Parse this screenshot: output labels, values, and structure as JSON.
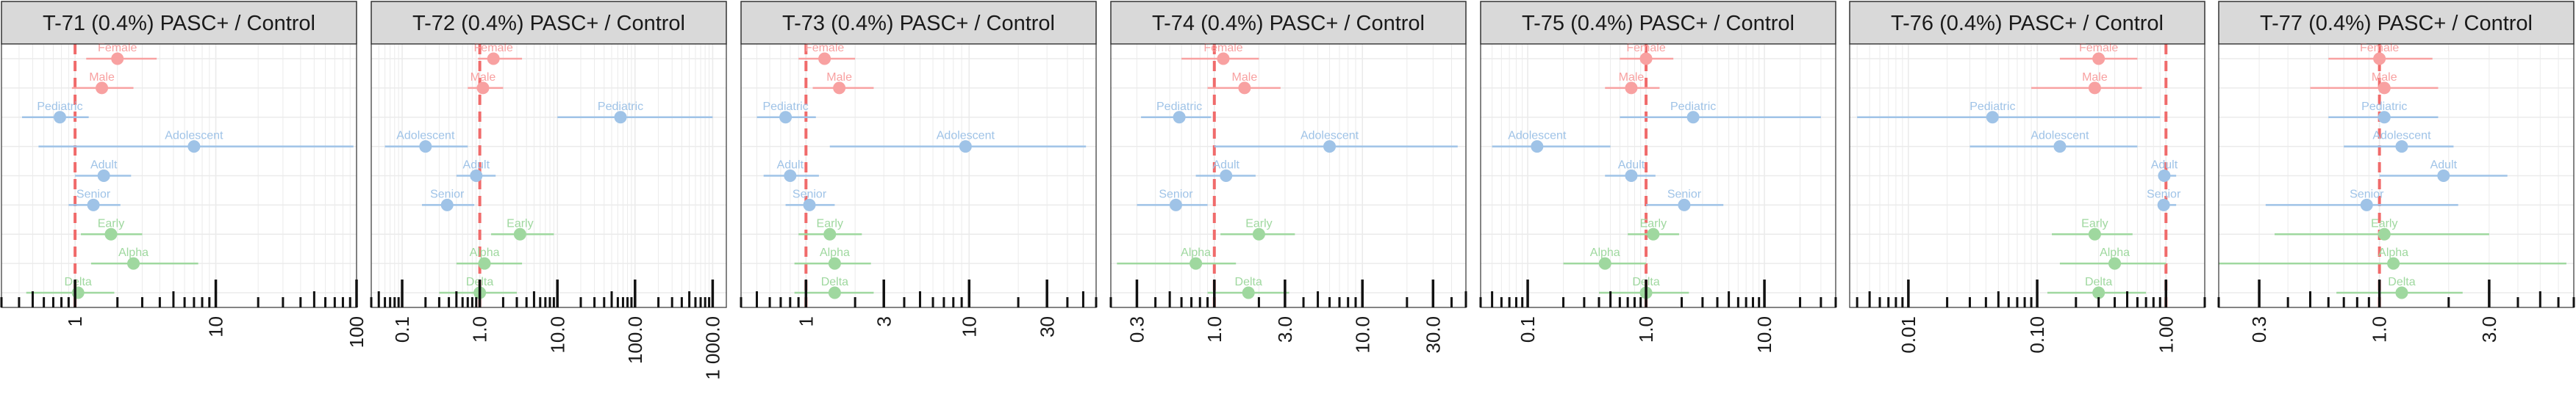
{
  "colors": {
    "sex": "#f8a1a1",
    "age": "#9fc3e7",
    "variant": "#9fd89f",
    "ref_line": "#f06b6b",
    "strip_bg": "#d9d9d9",
    "panel_border": "#333333",
    "grid": "#ebebeb"
  },
  "chart_data": [
    {
      "type": "forest",
      "title": "T-71 (0.4%) PASC+ / Control",
      "scale": "log10",
      "xlim": [
        0.3,
        100
      ],
      "ticks": [
        1,
        10,
        100
      ],
      "tick_labels": [
        "1",
        "10",
        "100"
      ],
      "reference_line": 1,
      "points": [
        {
          "label": "Female",
          "group": "sex",
          "estimate": 2.0,
          "low": 1.2,
          "high": 3.8
        },
        {
          "label": "Male",
          "group": "sex",
          "estimate": 1.55,
          "low": 0.95,
          "high": 2.6
        },
        {
          "label": "Pediatric",
          "group": "age",
          "estimate": 0.78,
          "low": 0.42,
          "high": 1.25
        },
        {
          "label": "Adolescent",
          "group": "age",
          "estimate": 7.0,
          "low": 0.55,
          "high": 95
        },
        {
          "label": "Adult",
          "group": "age",
          "estimate": 1.6,
          "low": 1.0,
          "high": 2.5
        },
        {
          "label": "Senior",
          "group": "age",
          "estimate": 1.35,
          "low": 0.9,
          "high": 2.1
        },
        {
          "label": "Early",
          "group": "variant",
          "estimate": 1.8,
          "low": 1.1,
          "high": 3.0
        },
        {
          "label": "Alpha",
          "group": "variant",
          "estimate": 2.6,
          "low": 1.3,
          "high": 7.5
        },
        {
          "label": "Delta",
          "group": "variant",
          "estimate": 1.05,
          "low": 0.45,
          "high": 1.9
        }
      ]
    },
    {
      "type": "forest",
      "title": "T-72 (0.4%) PASC+ / Control",
      "scale": "log10",
      "xlim": [
        0.04,
        1500
      ],
      "ticks": [
        0.1,
        1.0,
        10.0,
        100.0,
        1000.0
      ],
      "tick_labels": [
        "0.1",
        "1.0",
        "10.0",
        "100.0",
        "1 000.0"
      ],
      "reference_line": 1,
      "points": [
        {
          "label": "Female",
          "group": "sex",
          "estimate": 1.5,
          "low": 0.95,
          "high": 3.5
        },
        {
          "label": "Male",
          "group": "sex",
          "estimate": 1.1,
          "low": 0.7,
          "high": 2.0
        },
        {
          "label": "Pediatric",
          "group": "age",
          "estimate": 65,
          "low": 10,
          "high": 1000
        },
        {
          "label": "Adolescent",
          "group": "age",
          "estimate": 0.2,
          "low": 0.06,
          "high": 0.7
        },
        {
          "label": "Adult",
          "group": "age",
          "estimate": 0.9,
          "low": 0.5,
          "high": 1.6
        },
        {
          "label": "Senior",
          "group": "age",
          "estimate": 0.38,
          "low": 0.18,
          "high": 0.85
        },
        {
          "label": "Early",
          "group": "variant",
          "estimate": 3.3,
          "low": 1.4,
          "high": 9.0
        },
        {
          "label": "Alpha",
          "group": "variant",
          "estimate": 1.15,
          "low": 0.5,
          "high": 3.5
        },
        {
          "label": "Delta",
          "group": "variant",
          "estimate": 1.0,
          "low": 0.3,
          "high": 3.0
        }
      ]
    },
    {
      "type": "forest",
      "title": "T-73 (0.4%) PASC+ / Control",
      "scale": "log10",
      "xlim": [
        0.4,
        60
      ],
      "ticks": [
        1,
        3,
        10,
        30
      ],
      "tick_labels": [
        "1",
        "3",
        "10",
        "30"
      ],
      "reference_line": 1,
      "points": [
        {
          "label": "Female",
          "group": "sex",
          "estimate": 1.3,
          "low": 0.9,
          "high": 2.0
        },
        {
          "label": "Male",
          "group": "sex",
          "estimate": 1.6,
          "low": 1.1,
          "high": 2.6
        },
        {
          "label": "Pediatric",
          "group": "age",
          "estimate": 0.75,
          "low": 0.5,
          "high": 1.15
        },
        {
          "label": "Adolescent",
          "group": "age",
          "estimate": 9.5,
          "low": 1.4,
          "high": 52
        },
        {
          "label": "Adult",
          "group": "age",
          "estimate": 0.8,
          "low": 0.55,
          "high": 1.2
        },
        {
          "label": "Senior",
          "group": "age",
          "estimate": 1.05,
          "low": 0.75,
          "high": 1.5
        },
        {
          "label": "Early",
          "group": "variant",
          "estimate": 1.4,
          "low": 0.9,
          "high": 2.2
        },
        {
          "label": "Alpha",
          "group": "variant",
          "estimate": 1.5,
          "low": 0.85,
          "high": 2.5
        },
        {
          "label": "Delta",
          "group": "variant",
          "estimate": 1.5,
          "low": 0.85,
          "high": 2.6
        }
      ]
    },
    {
      "type": "forest",
      "title": "T-74 (0.4%) PASC+ / Control",
      "scale": "log10",
      "xlim": [
        0.2,
        50
      ],
      "ticks": [
        0.3,
        1.0,
        3.0,
        10.0,
        30.0
      ],
      "tick_labels": [
        "0.3",
        "1.0",
        "3.0",
        "10.0",
        "30.0"
      ],
      "reference_line": 1,
      "points": [
        {
          "label": "Female",
          "group": "sex",
          "estimate": 1.15,
          "low": 0.6,
          "high": 2.0
        },
        {
          "label": "Male",
          "group": "sex",
          "estimate": 1.6,
          "low": 0.9,
          "high": 2.8
        },
        {
          "label": "Pediatric",
          "group": "age",
          "estimate": 0.58,
          "low": 0.32,
          "high": 0.95
        },
        {
          "label": "Adolescent",
          "group": "age",
          "estimate": 6.0,
          "low": 1.0,
          "high": 44
        },
        {
          "label": "Adult",
          "group": "age",
          "estimate": 1.2,
          "low": 0.75,
          "high": 1.9
        },
        {
          "label": "Senior",
          "group": "age",
          "estimate": 0.55,
          "low": 0.3,
          "high": 0.9
        },
        {
          "label": "Early",
          "group": "variant",
          "estimate": 2.0,
          "low": 1.1,
          "high": 3.5
        },
        {
          "label": "Alpha",
          "group": "variant",
          "estimate": 0.75,
          "low": 0.22,
          "high": 1.4
        },
        {
          "label": "Delta",
          "group": "variant",
          "estimate": 1.7,
          "low": 0.9,
          "high": 3.2
        }
      ]
    },
    {
      "type": "forest",
      "title": "T-75 (0.4%) PASC+ / Control",
      "scale": "log10",
      "xlim": [
        0.04,
        40
      ],
      "ticks": [
        0.1,
        1.0,
        10.0
      ],
      "tick_labels": [
        "0.1",
        "1.0",
        "10.0"
      ],
      "reference_line": 1,
      "points": [
        {
          "label": "Female",
          "group": "sex",
          "estimate": 1.0,
          "low": 0.6,
          "high": 1.7
        },
        {
          "label": "Male",
          "group": "sex",
          "estimate": 0.75,
          "low": 0.45,
          "high": 1.3
        },
        {
          "label": "Pediatric",
          "group": "age",
          "estimate": 2.5,
          "low": 0.6,
          "high": 30
        },
        {
          "label": "Adolescent",
          "group": "age",
          "estimate": 0.12,
          "low": 0.05,
          "high": 0.5
        },
        {
          "label": "Adult",
          "group": "age",
          "estimate": 0.75,
          "low": 0.45,
          "high": 1.2
        },
        {
          "label": "Senior",
          "group": "age",
          "estimate": 2.1,
          "low": 1.0,
          "high": 4.5
        },
        {
          "label": "Early",
          "group": "variant",
          "estimate": 1.15,
          "low": 0.7,
          "high": 1.9
        },
        {
          "label": "Alpha",
          "group": "variant",
          "estimate": 0.45,
          "low": 0.2,
          "high": 1.0
        },
        {
          "label": "Delta",
          "group": "variant",
          "estimate": 1.0,
          "low": 0.4,
          "high": 2.3
        }
      ]
    },
    {
      "type": "forest",
      "title": "T-76 (0.4%) PASC+ / Control",
      "scale": "log10",
      "xlim": [
        0.0035,
        2
      ],
      "ticks": [
        0.01,
        0.1,
        1.0
      ],
      "tick_labels": [
        "0.01",
        "0.10",
        "1.00"
      ],
      "reference_line": 1,
      "points": [
        {
          "label": "Female",
          "group": "sex",
          "estimate": 0.3,
          "low": 0.15,
          "high": 0.6
        },
        {
          "label": "Male",
          "group": "sex",
          "estimate": 0.28,
          "low": 0.09,
          "high": 0.65
        },
        {
          "label": "Pediatric",
          "group": "age",
          "estimate": 0.045,
          "low": 0.004,
          "high": 0.9
        },
        {
          "label": "Adolescent",
          "group": "age",
          "estimate": 0.15,
          "low": 0.03,
          "high": 0.6
        },
        {
          "label": "Adult",
          "group": "age",
          "estimate": 0.97,
          "low": 0.9,
          "high": 1.2
        },
        {
          "label": "Senior",
          "group": "age",
          "estimate": 0.96,
          "low": 0.88,
          "high": 1.2
        },
        {
          "label": "Early",
          "group": "variant",
          "estimate": 0.28,
          "low": 0.13,
          "high": 0.55
        },
        {
          "label": "Alpha",
          "group": "variant",
          "estimate": 0.4,
          "low": 0.15,
          "high": 1.0
        },
        {
          "label": "Delta",
          "group": "variant",
          "estimate": 0.3,
          "low": 0.12,
          "high": 0.7
        }
      ]
    },
    {
      "type": "forest",
      "title": "T-77 (0.4%) PASC+ / Control",
      "scale": "log10",
      "xlim": [
        0.2,
        7
      ],
      "ticks": [
        0.3,
        1.0,
        3.0
      ],
      "tick_labels": [
        "0.3",
        "1.0",
        "3.0"
      ],
      "reference_line": 1,
      "points": [
        {
          "label": "Female",
          "group": "sex",
          "estimate": 1.0,
          "low": 0.6,
          "high": 1.7
        },
        {
          "label": "Male",
          "group": "sex",
          "estimate": 1.05,
          "low": 0.5,
          "high": 1.8
        },
        {
          "label": "Pediatric",
          "group": "age",
          "estimate": 1.05,
          "low": 0.6,
          "high": 1.8
        },
        {
          "label": "Adolescent",
          "group": "age",
          "estimate": 1.25,
          "low": 0.7,
          "high": 2.1
        },
        {
          "label": "Adult",
          "group": "age",
          "estimate": 1.9,
          "low": 1.0,
          "high": 3.6
        },
        {
          "label": "Senior",
          "group": "age",
          "estimate": 0.88,
          "low": 0.32,
          "high": 2.2
        },
        {
          "label": "Early",
          "group": "variant",
          "estimate": 1.05,
          "low": 0.35,
          "high": 3.0
        },
        {
          "label": "Alpha",
          "group": "variant",
          "estimate": 1.15,
          "low": 0.2,
          "high": 6.5
        },
        {
          "label": "Delta",
          "group": "variant",
          "estimate": 1.25,
          "low": 0.65,
          "high": 2.3
        }
      ]
    }
  ]
}
